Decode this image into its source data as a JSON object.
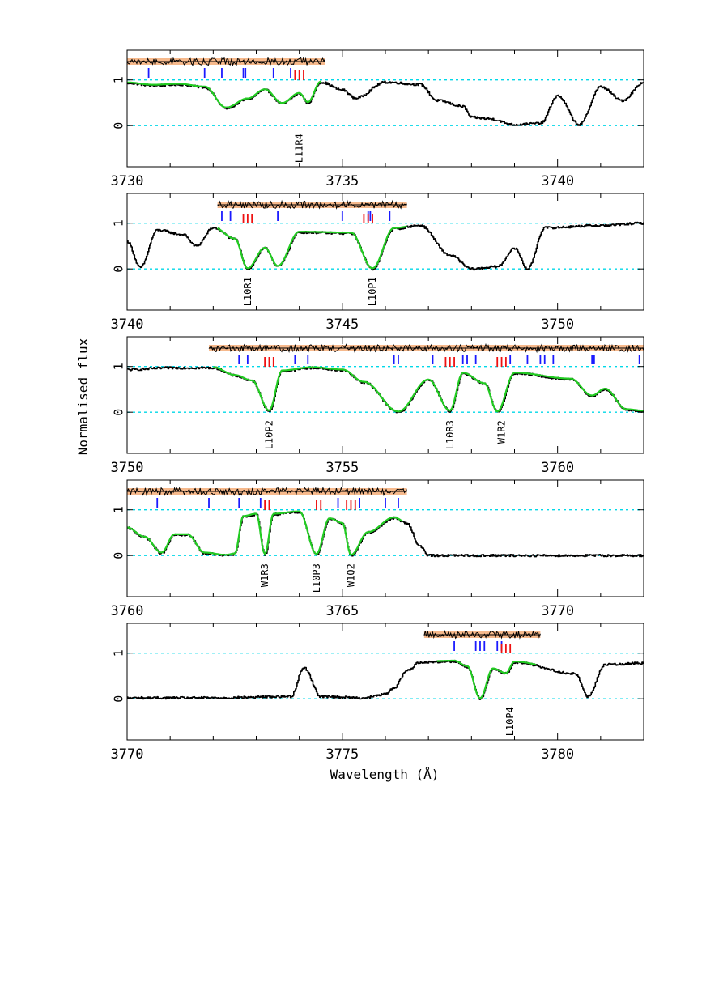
{
  "chart_data": {
    "type": "line",
    "xlabel": "Wavelength (Å)",
    "ylabel": "Normalised flux",
    "yticks": [
      0,
      1
    ],
    "reference_lines": [
      0,
      1
    ],
    "colors": {
      "data": "#000000",
      "model": "#22cc22",
      "reference": "#00d8e8",
      "residual_band": "#f6b98c",
      "components_a": "#1a1aff",
      "components_b": "#ee1111"
    },
    "panels": [
      {
        "xlim": [
          3730,
          3742
        ],
        "ylim": [
          -0.9,
          1.65
        ],
        "xticks": [
          3730,
          3735,
          3740
        ],
        "profile": [
          [
            3730,
            0.93
          ],
          [
            3730.6,
            0.88
          ],
          [
            3731.2,
            0.9
          ],
          [
            3731.8,
            0.84
          ],
          [
            3732.3,
            0.38
          ],
          [
            3732.8,
            0.58
          ],
          [
            3733.2,
            0.78
          ],
          [
            3733.6,
            0.48
          ],
          [
            3734.0,
            0.7
          ],
          [
            3734.2,
            0.5
          ],
          [
            3734.5,
            0.95
          ],
          [
            3735.0,
            0.78
          ],
          [
            3735.3,
            0.6
          ],
          [
            3736.0,
            0.95
          ],
          [
            3736.8,
            0.9
          ],
          [
            3737.2,
            0.55
          ],
          [
            3737.8,
            0.42
          ],
          [
            3738.0,
            0.18
          ],
          [
            3738.4,
            0.15
          ],
          [
            3739.0,
            0.02
          ],
          [
            3739.6,
            0.05
          ],
          [
            3740.0,
            0.65
          ],
          [
            3740.5,
            0.02
          ],
          [
            3741.0,
            0.85
          ],
          [
            3741.5,
            0.55
          ],
          [
            3742.0,
            0.95
          ]
        ],
        "model_range": [
          3730,
          3734.5
        ],
        "residual_range": [
          3730,
          3734.6
        ],
        "ticks_blue": [
          3730.5,
          3731.8,
          3732.2,
          3732.7,
          3732.75,
          3733.4,
          3733.8
        ],
        "ticks_red": [
          3733.9,
          3734.0,
          3734.1
        ],
        "labels": [
          {
            "x": 3734.0,
            "text": "L11R4"
          }
        ]
      },
      {
        "xlim": [
          3740,
          3752
        ],
        "ylim": [
          -0.9,
          1.65
        ],
        "xticks": [
          3740,
          3745,
          3750
        ],
        "profile": [
          [
            3740,
            0.6
          ],
          [
            3740.3,
            0.03
          ],
          [
            3740.7,
            0.85
          ],
          [
            3741.3,
            0.75
          ],
          [
            3741.6,
            0.5
          ],
          [
            3742.0,
            0.9
          ],
          [
            3742.5,
            0.65
          ],
          [
            3742.8,
            0.0
          ],
          [
            3743.2,
            0.45
          ],
          [
            3743.5,
            0.05
          ],
          [
            3744.0,
            0.8
          ],
          [
            3745.2,
            0.78
          ],
          [
            3745.7,
            0.0
          ],
          [
            3746.2,
            0.88
          ],
          [
            3746.8,
            0.95
          ],
          [
            3747.5,
            0.3
          ],
          [
            3748.0,
            0.0
          ],
          [
            3748.6,
            0.05
          ],
          [
            3749.0,
            0.45
          ],
          [
            3749.3,
            0.0
          ],
          [
            3749.7,
            0.9
          ],
          [
            3751.0,
            0.95
          ],
          [
            3752.0,
            1.0
          ]
        ],
        "model_range": [
          3742.1,
          3746.5
        ],
        "residual_range": [
          3742.1,
          3746.5
        ],
        "ticks_blue": [
          3742.2,
          3742.4,
          3743.5,
          3745.0,
          3745.6,
          3745.65,
          3746.1
        ],
        "ticks_red": [
          3742.7,
          3742.8,
          3742.9,
          3745.5,
          3745.6,
          3745.7
        ],
        "labels": [
          {
            "x": 3742.8,
            "text": "L10R1"
          },
          {
            "x": 3745.7,
            "text": "L10P1"
          }
        ]
      },
      {
        "xlim": [
          3750,
          3762
        ],
        "ylim": [
          -0.9,
          1.65
        ],
        "xticks": [
          3750,
          3755,
          3760
        ],
        "profile": [
          [
            3750,
            0.93
          ],
          [
            3751.0,
            0.97
          ],
          [
            3752.0,
            0.97
          ],
          [
            3752.5,
            0.8
          ],
          [
            3752.9,
            0.68
          ],
          [
            3753.3,
            0.02
          ],
          [
            3753.6,
            0.9
          ],
          [
            3754.3,
            0.97
          ],
          [
            3755.0,
            0.92
          ],
          [
            3755.5,
            0.65
          ],
          [
            3756.3,
            0.0
          ],
          [
            3757.0,
            0.7
          ],
          [
            3757.5,
            0.02
          ],
          [
            3757.8,
            0.85
          ],
          [
            3758.3,
            0.62
          ],
          [
            3758.6,
            0.0
          ],
          [
            3759.0,
            0.85
          ],
          [
            3760.3,
            0.72
          ],
          [
            3760.8,
            0.35
          ],
          [
            3761.1,
            0.5
          ],
          [
            3761.6,
            0.05
          ],
          [
            3762.0,
            0.02
          ]
        ],
        "model_range": [
          3752.0,
          3762.0
        ],
        "residual_range": [
          3751.9,
          3762.0
        ],
        "ticks_blue": [
          3752.6,
          3752.8,
          3753.9,
          3754.2,
          3756.2,
          3756.3,
          3757.1,
          3757.8,
          3757.9,
          3758.1,
          3758.9,
          3759.3,
          3759.6,
          3759.7,
          3759.9,
          3760.8,
          3760.85,
          3761.9
        ],
        "ticks_red": [
          3753.2,
          3753.3,
          3753.4,
          3757.4,
          3757.5,
          3757.6,
          3758.6,
          3758.7,
          3758.8
        ],
        "labels": [
          {
            "x": 3753.3,
            "text": "L10P2"
          },
          {
            "x": 3757.5,
            "text": "L10R3"
          },
          {
            "x": 3758.7,
            "text": "W1R2"
          }
        ]
      },
      {
        "xlim": [
          3760,
          3772
        ],
        "ylim": [
          -0.9,
          1.65
        ],
        "xticks": [
          3760,
          3765,
          3770
        ],
        "profile": [
          [
            3760,
            0.6
          ],
          [
            3760.4,
            0.4
          ],
          [
            3760.8,
            0.05
          ],
          [
            3761.1,
            0.45
          ],
          [
            3761.4,
            0.45
          ],
          [
            3761.8,
            0.05
          ],
          [
            3762.3,
            0.0
          ],
          [
            3762.5,
            0.03
          ],
          [
            3762.7,
            0.85
          ],
          [
            3763.0,
            0.9
          ],
          [
            3763.2,
            0.02
          ],
          [
            3763.4,
            0.9
          ],
          [
            3764.0,
            0.95
          ],
          [
            3764.4,
            0.02
          ],
          [
            3764.7,
            0.8
          ],
          [
            3765.0,
            0.7
          ],
          [
            3765.2,
            0.0
          ],
          [
            3765.6,
            0.5
          ],
          [
            3766.2,
            0.82
          ],
          [
            3766.5,
            0.7
          ],
          [
            3766.8,
            0.2
          ],
          [
            3767.0,
            0.0
          ],
          [
            3772.0,
            0.0
          ]
        ],
        "model_range": [
          3760.0,
          3766.4
        ],
        "residual_range": [
          3760.0,
          3766.5
        ],
        "ticks_blue": [
          3760.7,
          3761.9,
          3762.6,
          3763.1,
          3764.9,
          3765.4,
          3766.0,
          3766.3
        ],
        "ticks_red": [
          3763.2,
          3763.3,
          3764.4,
          3764.5,
          3765.1,
          3765.2,
          3765.3
        ],
        "labels": [
          {
            "x": 3763.2,
            "text": "W1R3"
          },
          {
            "x": 3764.4,
            "text": "L10P3"
          },
          {
            "x": 3765.2,
            "text": "W1Q2"
          }
        ]
      },
      {
        "xlim": [
          3770,
          3782
        ],
        "ylim": [
          -0.9,
          1.65
        ],
        "xticks": [
          3770,
          3775,
          3780
        ],
        "profile": [
          [
            3770,
            0.02
          ],
          [
            3772.0,
            0.02
          ],
          [
            3773.8,
            0.05
          ],
          [
            3774.1,
            0.68
          ],
          [
            3774.5,
            0.05
          ],
          [
            3775.5,
            0.02
          ],
          [
            3776.0,
            0.1
          ],
          [
            3776.2,
            0.25
          ],
          [
            3776.5,
            0.62
          ],
          [
            3776.8,
            0.8
          ],
          [
            3777.6,
            0.82
          ],
          [
            3777.9,
            0.7
          ],
          [
            3778.2,
            0.0
          ],
          [
            3778.5,
            0.65
          ],
          [
            3778.8,
            0.55
          ],
          [
            3779.0,
            0.8
          ],
          [
            3780.4,
            0.55
          ],
          [
            3780.7,
            0.05
          ],
          [
            3781.1,
            0.75
          ],
          [
            3782.0,
            0.78
          ]
        ],
        "model_range": [
          3777.2,
          3779.5
        ],
        "residual_range": [
          3776.9,
          3779.6
        ],
        "ticks_blue": [
          3777.6,
          3778.1,
          3778.2,
          3778.3,
          3778.6,
          3778.7
        ],
        "ticks_red": [
          3778.7,
          3778.8,
          3778.9
        ],
        "labels": [
          {
            "x": 3778.9,
            "text": "L10P4"
          }
        ]
      }
    ]
  }
}
